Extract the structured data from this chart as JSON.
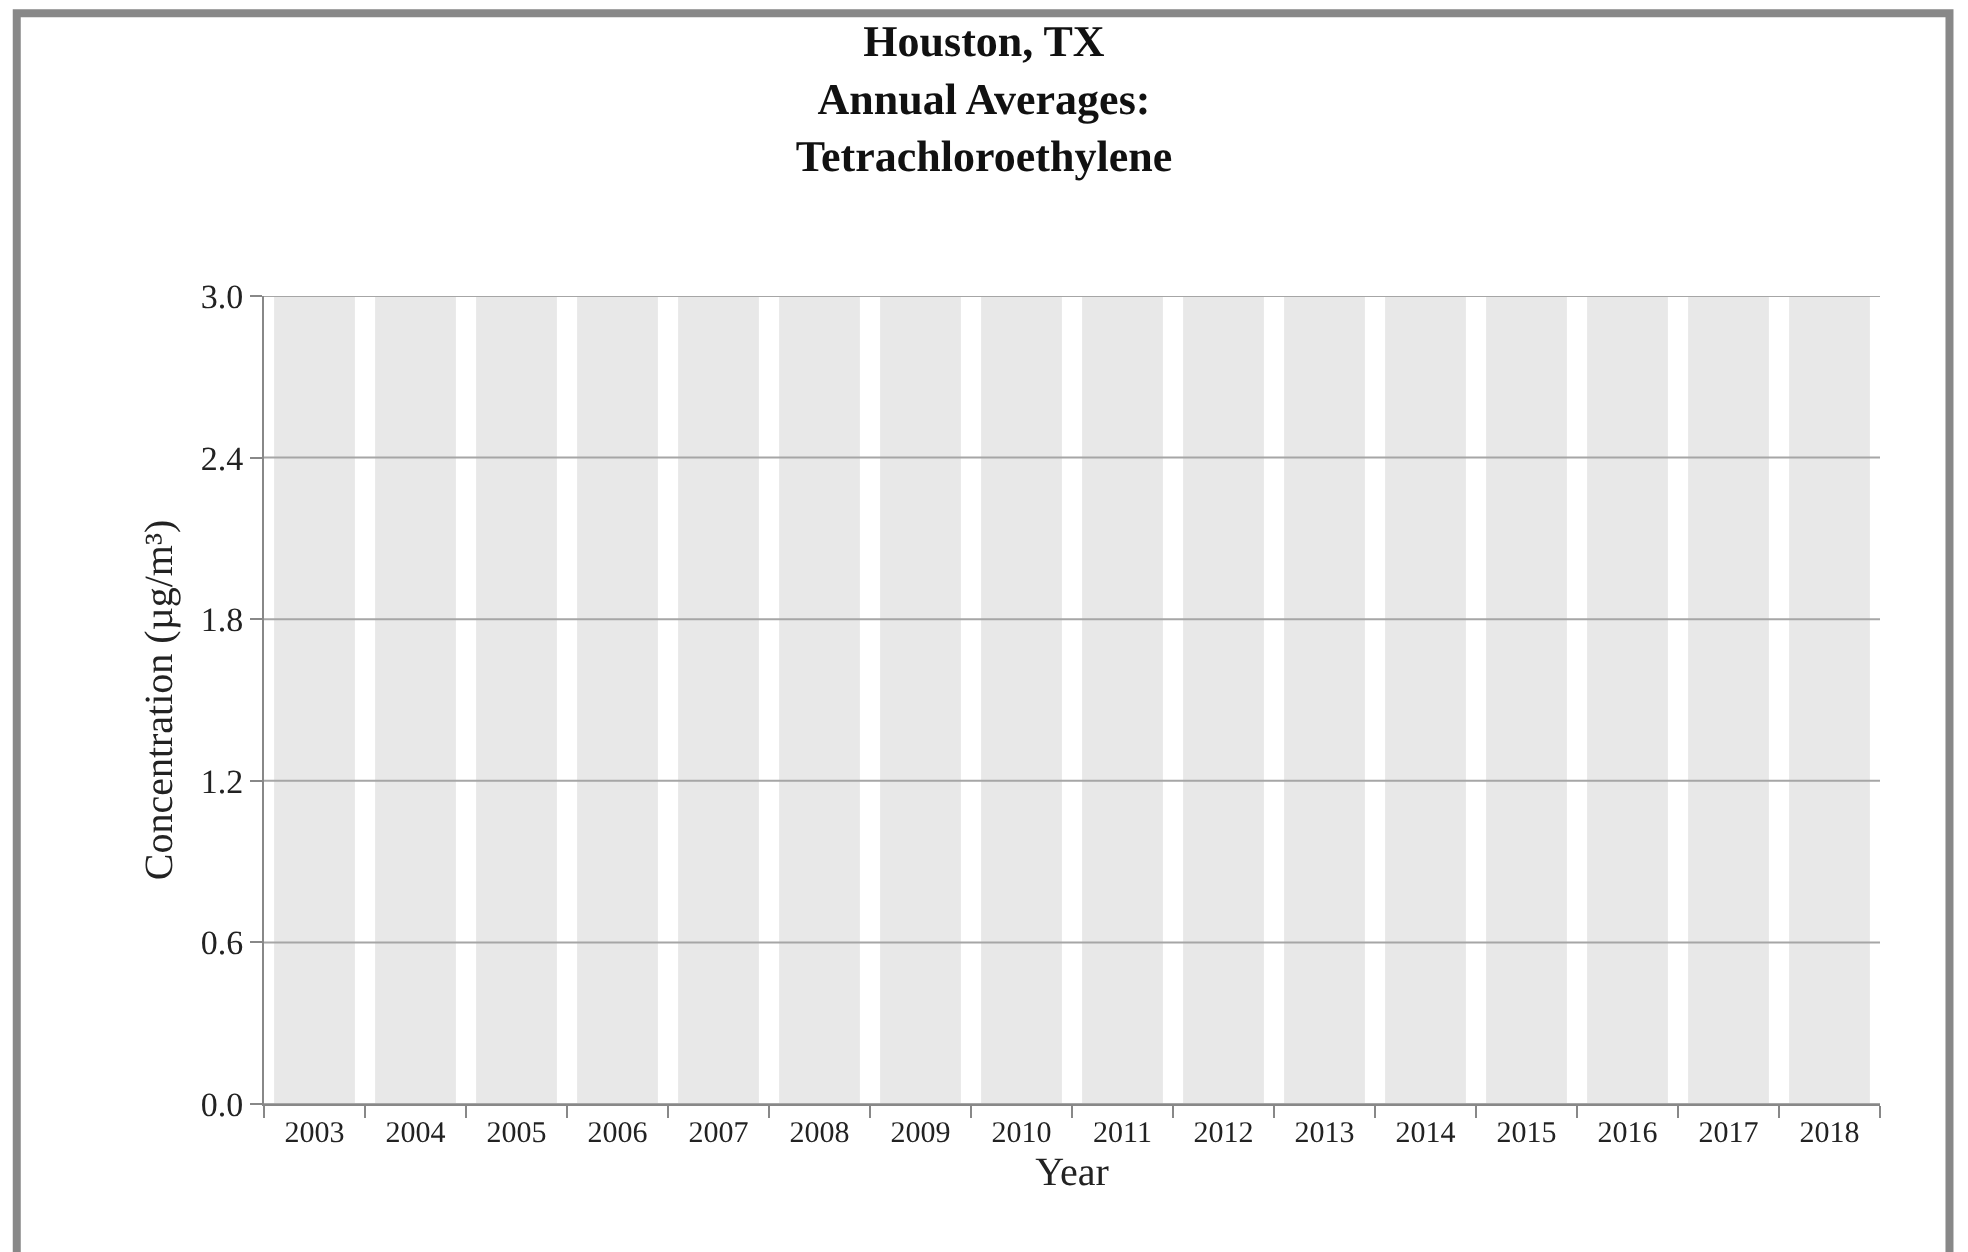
{
  "chart_data": {
    "type": "bar",
    "title": "Houston, TX\nAnnual Averages:\nTetrachloroethylene",
    "xlabel": "Year",
    "ylabel": "Concentration (µg/m³)",
    "categories": [
      "2003",
      "2004",
      "2005",
      "2006",
      "2007",
      "2008",
      "2009",
      "2010",
      "2011",
      "2012",
      "2013",
      "2014",
      "2015",
      "2016",
      "2017",
      "2018"
    ],
    "values": [
      3.0,
      3.0,
      3.0,
      3.0,
      3.0,
      3.0,
      3.0,
      3.0,
      3.0,
      3.0,
      3.0,
      3.0,
      3.0,
      3.0,
      3.0,
      3.0
    ],
    "color": "#e8e8e8",
    "ylim": [
      0,
      3.0
    ],
    "yticks": [
      {
        "value": 0,
        "label": "0.0"
      },
      {
        "value": 0.6,
        "label": "0.6"
      },
      {
        "value": 1.2,
        "label": "1.2"
      },
      {
        "value": 1.8,
        "label": "1.8"
      },
      {
        "value": 2.4,
        "label": "2.4"
      },
      {
        "value": 3.0,
        "label": "3.0"
      }
    ],
    "grid": "y"
  }
}
